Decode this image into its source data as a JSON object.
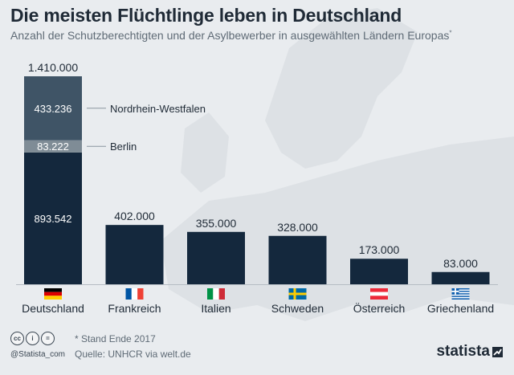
{
  "title": "Die meisten Flüchtlinge leben in Deutschland",
  "subtitle": "Anzahl der Schutzberechtigten und der Asylbewerber in ausgewählten Ländern Europas",
  "subtitle_mark": "*",
  "footnote": "* Stand Ende 2017",
  "source": "Quelle: UNHCR via welt.de",
  "handle": "@Statista_com",
  "logo": "statista",
  "icons": [
    "creative-commons-icon",
    "attribution-icon",
    "no-derivatives-icon"
  ],
  "colors": {
    "bar": "#14283d",
    "nrw": "#3f5466",
    "berlin": "#7f8c96",
    "background": "#e9ecef"
  },
  "chart_data": {
    "type": "bar",
    "categories": [
      "Deutschland",
      "Frankreich",
      "Italien",
      "Schweden",
      "Österreich",
      "Griechenland"
    ],
    "values": [
      1410000,
      402000,
      355000,
      328000,
      173000,
      83000
    ],
    "value_labels": [
      "1.410.000",
      "402.000",
      "355.000",
      "328.000",
      "173.000",
      "83.000"
    ],
    "stacked_first_bar": {
      "category": "Deutschland",
      "segments": [
        {
          "name": "",
          "value": 893542,
          "label": "893.542"
        },
        {
          "name": "Berlin",
          "value": 83222,
          "label": "83.222"
        },
        {
          "name": "Nordrhein-Westfalen",
          "value": 433236,
          "label": "433.236"
        }
      ]
    },
    "flags": [
      "de",
      "fr",
      "it",
      "se",
      "at",
      "gr"
    ],
    "ylim": [
      0,
      1410000
    ],
    "grid": false,
    "legend": "annotations right of first bar"
  }
}
